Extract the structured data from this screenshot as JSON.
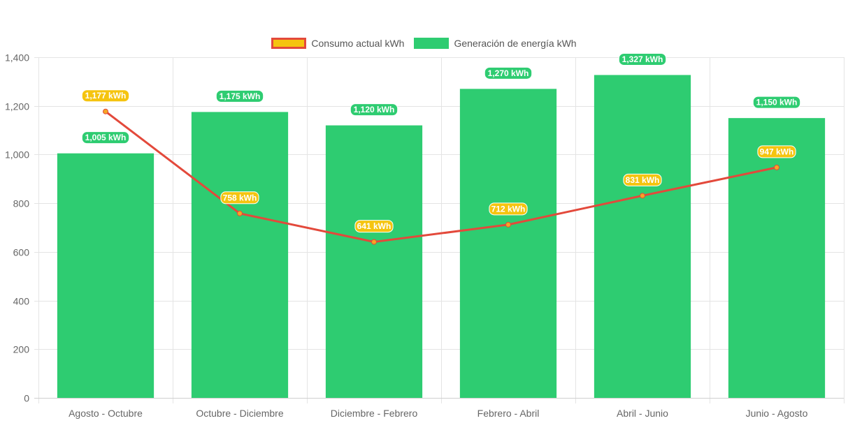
{
  "legend": {
    "line_label": "Consumo actual kWh",
    "bar_label": "Generación de energía kWh"
  },
  "chart_data": {
    "type": "bar",
    "categories": [
      "Agosto - Octubre",
      "Octubre - Diciembre",
      "Diciembre - Febrero",
      "Febrero - Abril",
      "Abril - Junio",
      "Junio - Agosto"
    ],
    "series": [
      {
        "name": "Consumo actual kWh",
        "type": "line",
        "values": [
          1177,
          758,
          641,
          712,
          831,
          947
        ],
        "labels": [
          "1,177 kWh",
          "758 kWh",
          "641 kWh",
          "712 kWh",
          "831 kWh",
          "947 kWh"
        ],
        "color": "#e3493b",
        "point_color": "#f5a623",
        "label_bg": "#f5c40f"
      },
      {
        "name": "Generación de energía kWh",
        "type": "bar",
        "values": [
          1005,
          1175,
          1120,
          1270,
          1327,
          1150
        ],
        "labels": [
          "1,005 kWh",
          "1,175 kWh",
          "1,120 kWh",
          "1,270 kWh",
          "1,327 kWh",
          "1,150 kWh"
        ],
        "color": "#2ecc71"
      }
    ],
    "ylim": [
      0,
      1400
    ],
    "yticks": [
      0,
      200,
      400,
      600,
      800,
      1000,
      1200,
      1400
    ],
    "ytick_labels": [
      "0",
      "200",
      "400",
      "600",
      "800",
      "1,000",
      "1,200",
      "1,400"
    ],
    "grid": true,
    "legend_position": "top"
  }
}
